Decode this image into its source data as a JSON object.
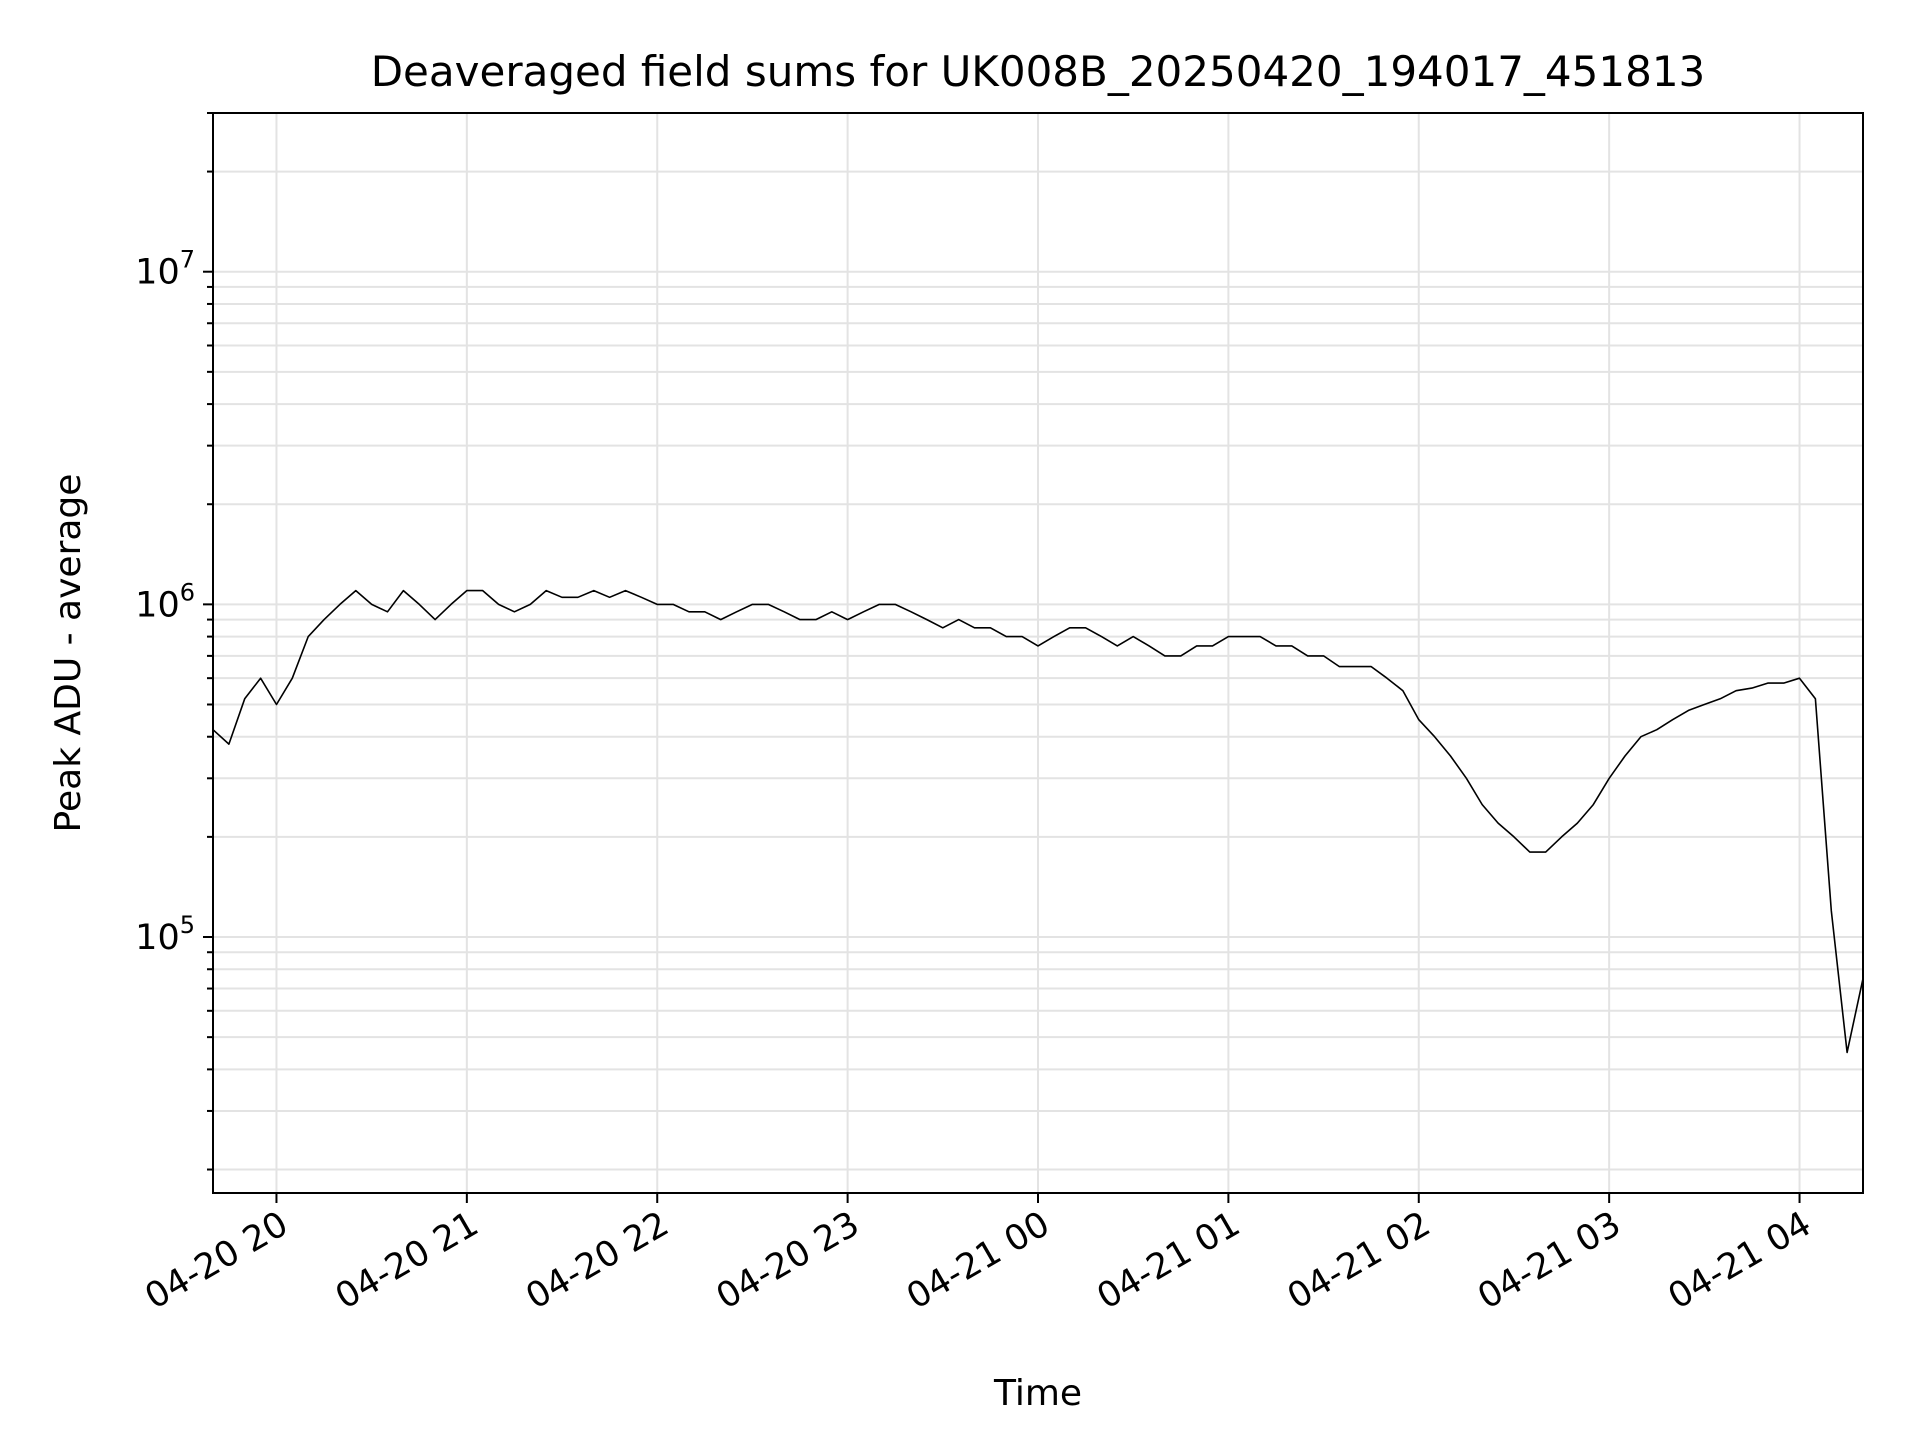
{
  "chart_data": {
    "type": "line",
    "title": "Deaveraged field sums for UK008B_20250420_194017_451813",
    "xlabel": "Time",
    "ylabel": "Peak ADU - average",
    "yscale": "log",
    "xlim": [
      "2025-04-20 19:40",
      "2025-04-21 04:20"
    ],
    "ylim": [
      17000,
      30000000
    ],
    "grid": true,
    "x_ticks": [
      {
        "value": "2025-04-20 20:00",
        "label": "04-20 20"
      },
      {
        "value": "2025-04-20 21:00",
        "label": "04-20 21"
      },
      {
        "value": "2025-04-20 22:00",
        "label": "04-20 22"
      },
      {
        "value": "2025-04-20 23:00",
        "label": "04-20 23"
      },
      {
        "value": "2025-04-21 00:00",
        "label": "04-21 00"
      },
      {
        "value": "2025-04-21 01:00",
        "label": "04-21 01"
      },
      {
        "value": "2025-04-21 02:00",
        "label": "04-21 02"
      },
      {
        "value": "2025-04-21 03:00",
        "label": "04-21 03"
      },
      {
        "value": "2025-04-21 04:00",
        "label": "04-21 04"
      }
    ],
    "y_ticks": [
      {
        "value": 100000,
        "base": "10",
        "exp": "5"
      },
      {
        "value": 1000000,
        "base": "10",
        "exp": "6"
      },
      {
        "value": 10000000,
        "base": "10",
        "exp": "7"
      }
    ],
    "series": [
      {
        "color": "#000000",
        "x": [
          "2025-04-20 19:40",
          "2025-04-20 19:45",
          "2025-04-20 19:50",
          "2025-04-20 19:55",
          "2025-04-20 20:00",
          "2025-04-20 20:05",
          "2025-04-20 20:10",
          "2025-04-20 20:15",
          "2025-04-20 20:20",
          "2025-04-20 20:25",
          "2025-04-20 20:30",
          "2025-04-20 20:35",
          "2025-04-20 20:40",
          "2025-04-20 20:45",
          "2025-04-20 20:50",
          "2025-04-20 20:55",
          "2025-04-20 21:00",
          "2025-04-20 21:05",
          "2025-04-20 21:10",
          "2025-04-20 21:15",
          "2025-04-20 21:20",
          "2025-04-20 21:25",
          "2025-04-20 21:30",
          "2025-04-20 21:35",
          "2025-04-20 21:40",
          "2025-04-20 21:45",
          "2025-04-20 21:50",
          "2025-04-20 21:55",
          "2025-04-20 22:00",
          "2025-04-20 22:05",
          "2025-04-20 22:10",
          "2025-04-20 22:15",
          "2025-04-20 22:20",
          "2025-04-20 22:25",
          "2025-04-20 22:30",
          "2025-04-20 22:35",
          "2025-04-20 22:40",
          "2025-04-20 22:45",
          "2025-04-20 22:50",
          "2025-04-20 22:55",
          "2025-04-20 23:00",
          "2025-04-20 23:05",
          "2025-04-20 23:10",
          "2025-04-20 23:15",
          "2025-04-20 23:20",
          "2025-04-20 23:25",
          "2025-04-20 23:30",
          "2025-04-20 23:35",
          "2025-04-20 23:40",
          "2025-04-20 23:45",
          "2025-04-20 23:50",
          "2025-04-20 23:55",
          "2025-04-21 00:00",
          "2025-04-21 00:05",
          "2025-04-21 00:10",
          "2025-04-21 00:15",
          "2025-04-21 00:20",
          "2025-04-21 00:25",
          "2025-04-21 00:30",
          "2025-04-21 00:35",
          "2025-04-21 00:40",
          "2025-04-21 00:45",
          "2025-04-21 00:50",
          "2025-04-21 00:55",
          "2025-04-21 01:00",
          "2025-04-21 01:05",
          "2025-04-21 01:10",
          "2025-04-21 01:15",
          "2025-04-21 01:20",
          "2025-04-21 01:25",
          "2025-04-21 01:30",
          "2025-04-21 01:35",
          "2025-04-21 01:40",
          "2025-04-21 01:45",
          "2025-04-21 01:50",
          "2025-04-21 01:55",
          "2025-04-21 02:00",
          "2025-04-21 02:05",
          "2025-04-21 02:10",
          "2025-04-21 02:15",
          "2025-04-21 02:20",
          "2025-04-21 02:25",
          "2025-04-21 02:30",
          "2025-04-21 02:35",
          "2025-04-21 02:40",
          "2025-04-21 02:45",
          "2025-04-21 02:50",
          "2025-04-21 02:55",
          "2025-04-21 03:00",
          "2025-04-21 03:05",
          "2025-04-21 03:10",
          "2025-04-21 03:15",
          "2025-04-21 03:20",
          "2025-04-21 03:25",
          "2025-04-21 03:30",
          "2025-04-21 03:35",
          "2025-04-21 03:40",
          "2025-04-21 03:45",
          "2025-04-21 03:50",
          "2025-04-21 03:55",
          "2025-04-21 04:00",
          "2025-04-21 04:05",
          "2025-04-21 04:10",
          "2025-04-21 04:15",
          "2025-04-21 04:20"
        ],
        "y": [
          420000,
          380000,
          520000,
          600000,
          500000,
          600000,
          800000,
          900000,
          1000000,
          1100000,
          1000000,
          950000,
          1100000,
          1000000,
          900000,
          1000000,
          1100000,
          1100000,
          1000000,
          950000,
          1000000,
          1100000,
          1050000,
          1050000,
          1100000,
          1050000,
          1100000,
          1050000,
          1000000,
          1000000,
          950000,
          950000,
          900000,
          950000,
          1000000,
          1000000,
          950000,
          900000,
          900000,
          950000,
          900000,
          950000,
          1000000,
          1000000,
          950000,
          900000,
          850000,
          900000,
          850000,
          850000,
          800000,
          800000,
          750000,
          800000,
          850000,
          850000,
          800000,
          750000,
          800000,
          750000,
          700000,
          700000,
          750000,
          750000,
          800000,
          800000,
          800000,
          750000,
          750000,
          700000,
          700000,
          650000,
          650000,
          650000,
          600000,
          550000,
          450000,
          400000,
          350000,
          300000,
          250000,
          220000,
          200000,
          180000,
          180000,
          200000,
          220000,
          250000,
          300000,
          350000,
          400000,
          420000,
          450000,
          480000,
          500000,
          520000,
          550000,
          560000,
          580000,
          580000,
          600000,
          520000,
          120000,
          45000,
          75000
        ]
      }
    ]
  }
}
